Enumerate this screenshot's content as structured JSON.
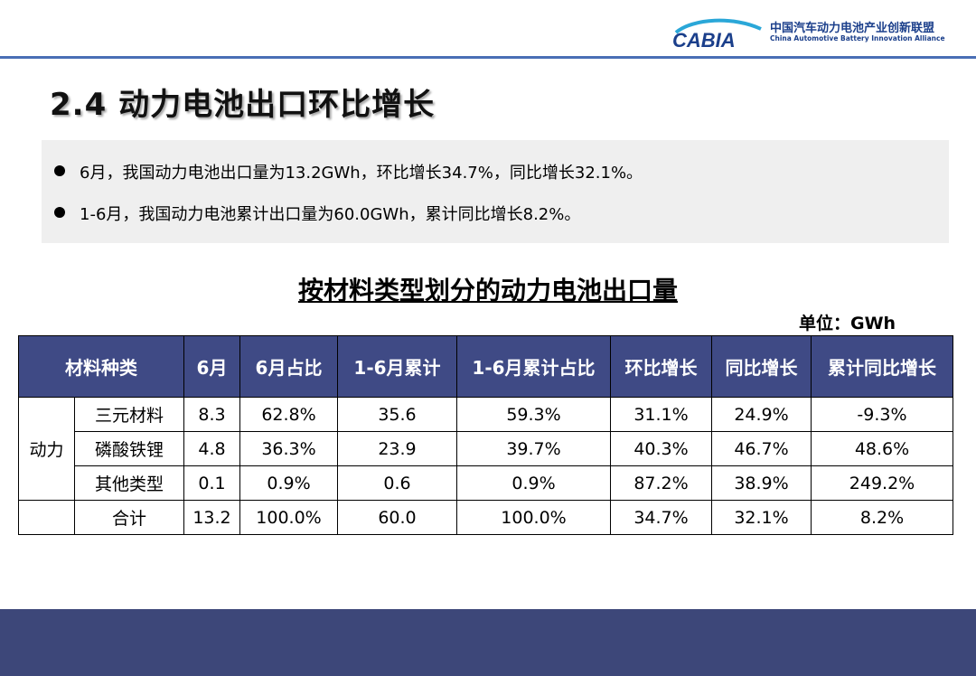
{
  "header": {
    "logo_mark": "CABIA",
    "org_name_cn": "中国汽车动力电池产业创新联盟",
    "org_name_en": "China Automotive Battery Innovation Alliance"
  },
  "page_title": "2.4 动力电池出口环比增长",
  "summary": [
    "6月，我国动力电池出口量为13.2GWh，环比增长34.7%，同比增长32.1%。",
    "1-6月，我国动力电池累计出口量为60.0GWh，累计同比增长8.2%。"
  ],
  "table": {
    "title": "按材料类型划分的动力电池出口量",
    "unit": "单位：GWh",
    "headers": [
      "材料种类",
      "6月",
      "6月占比",
      "1-6月累计",
      "1-6月累计占比",
      "环比增长",
      "同比增长",
      "累计同比增长"
    ],
    "group_label": "动力",
    "rows": [
      [
        "三元材料",
        "8.3",
        "62.8%",
        "35.6",
        "59.3%",
        "31.1%",
        "24.9%",
        "-9.3%"
      ],
      [
        "磷酸铁锂",
        "4.8",
        "36.3%",
        "23.9",
        "39.7%",
        "40.3%",
        "46.7%",
        "48.6%"
      ],
      [
        "其他类型",
        "0.1",
        "0.9%",
        "0.6",
        "0.9%",
        "87.2%",
        "38.9%",
        "249.2%"
      ],
      [
        "合计",
        "13.2",
        "100.0%",
        "60.0",
        "100.0%",
        "34.7%",
        "32.1%",
        "8.2%"
      ]
    ]
  },
  "colors": {
    "header_fill": "#3f4a85",
    "footer_band": "#3d4779",
    "accent_line": "#4a6fb5",
    "summary_bg": "#efefef"
  }
}
